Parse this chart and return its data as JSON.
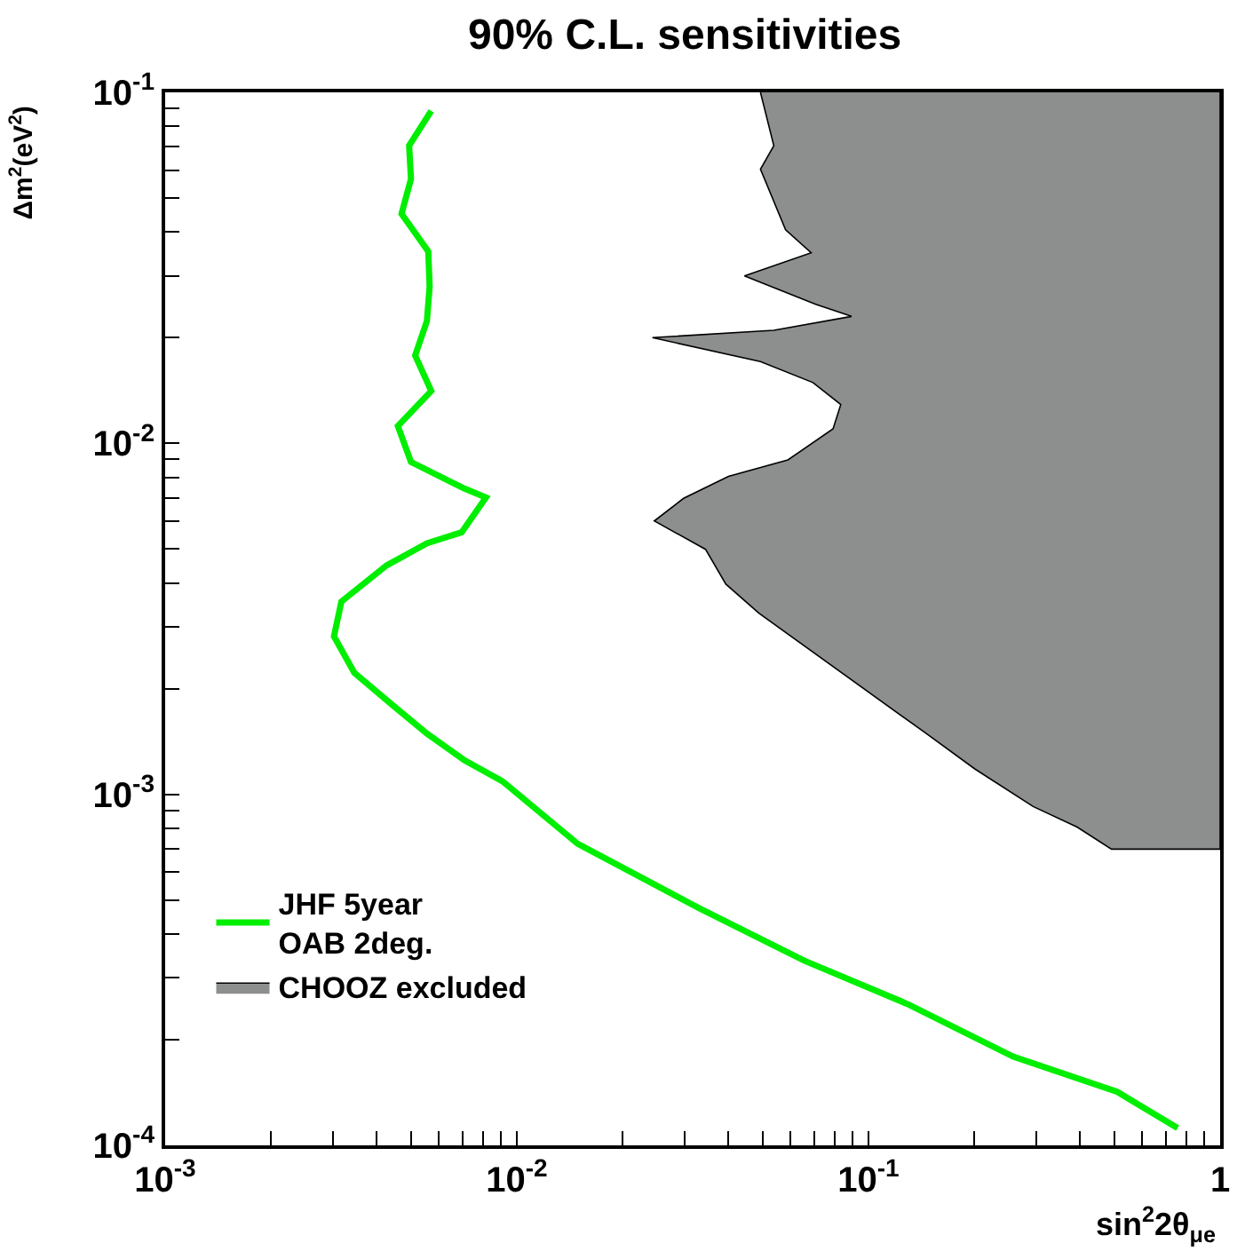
{
  "chart_data": {
    "type": "line",
    "title": "90% C.L. sensitivities",
    "xlabel": "sin$^{2}$2θ$_{μe}$",
    "ylabel": "Δm$^{2}$(eV$^{2}$)",
    "log": "xy",
    "grid": false,
    "legend": "bottom left",
    "marker": "none",
    "line_style": "solid",
    "xlim": [
      0.001,
      1
    ],
    "ylim": [
      0.0001,
      0.1
    ],
    "xticks": [
      {
        "value": 0.001,
        "label": "10$^{-3}$"
      },
      {
        "value": 0.002,
        "label": null
      },
      {
        "value": 0.003,
        "label": null
      },
      {
        "value": 0.004,
        "label": null
      },
      {
        "value": 0.005,
        "label": null
      },
      {
        "value": 0.006,
        "label": null
      },
      {
        "value": 0.007,
        "label": null
      },
      {
        "value": 0.008,
        "label": null
      },
      {
        "value": 0.009,
        "label": null
      },
      {
        "value": 0.01,
        "label": "10$^{-2}$"
      },
      {
        "value": 0.02,
        "label": null
      },
      {
        "value": 0.03,
        "label": null
      },
      {
        "value": 0.04,
        "label": null
      },
      {
        "value": 0.05,
        "label": null
      },
      {
        "value": 0.06,
        "label": null
      },
      {
        "value": 0.07,
        "label": null
      },
      {
        "value": 0.08,
        "label": null
      },
      {
        "value": 0.09,
        "label": null
      },
      {
        "value": 0.1,
        "label": "10$^{-1}$"
      },
      {
        "value": 0.2,
        "label": null
      },
      {
        "value": 0.3,
        "label": null
      },
      {
        "value": 0.4,
        "label": null
      },
      {
        "value": 0.5,
        "label": null
      },
      {
        "value": 0.6,
        "label": null
      },
      {
        "value": 0.7,
        "label": null
      },
      {
        "value": 0.8,
        "label": null
      },
      {
        "value": 0.9,
        "label": null
      },
      1
    ],
    "yticks": [
      {
        "value": 0.0001,
        "label": "10$^{-4}$"
      },
      {
        "value": 0.0002,
        "label": null
      },
      {
        "value": 0.0003,
        "label": null
      },
      {
        "value": 0.0004,
        "label": null
      },
      {
        "value": 0.0005,
        "label": null
      },
      {
        "value": 0.0006,
        "label": null
      },
      {
        "value": 0.0007,
        "label": null
      },
      {
        "value": 0.0008,
        "label": null
      },
      {
        "value": 0.0009,
        "label": null
      },
      {
        "value": 0.001,
        "label": "10$^{-3}$"
      },
      {
        "value": 0.002,
        "label": null
      },
      {
        "value": 0.003,
        "label": null
      },
      {
        "value": 0.004,
        "label": null
      },
      {
        "value": 0.005,
        "label": null
      },
      {
        "value": 0.006,
        "label": null
      },
      {
        "value": 0.007,
        "label": null
      },
      {
        "value": 0.008,
        "label": null
      },
      {
        "value": 0.009,
        "label": null
      },
      {
        "value": 0.01,
        "label": "10$^{-2}$"
      },
      {
        "value": 0.02,
        "label": null
      },
      {
        "value": 0.03,
        "label": null
      },
      {
        "value": 0.04,
        "label": null
      },
      {
        "value": 0.05,
        "label": null
      },
      {
        "value": 0.06,
        "label": null
      },
      {
        "value": 0.07,
        "label": null
      },
      {
        "value": 0.08,
        "label": null
      },
      {
        "value": 0.09,
        "label": null
      },
      {
        "value": 0.1,
        "label": "10$^{-1}$"
      }
    ],
    "series": [
      {
        "name": "JHF 5year\nOAB 2deg.",
        "color": "#00ee00",
        "x": [
          0.00571,
          0.00494,
          0.005,
          0.0047,
          0.0056,
          0.00565,
          0.00555,
          0.00514,
          0.00571,
          0.00459,
          0.005,
          0.0071,
          0.00817,
          0.00697,
          0.00555,
          0.00426,
          0.00317,
          0.00302,
          0.00345,
          0.00442,
          0.00555,
          0.0071,
          0.0091,
          0.0149,
          0.0331,
          0.0656,
          0.13,
          0.258,
          0.51,
          0.757
        ],
        "values": [
          0.0885,
          0.0705,
          0.0566,
          0.0451,
          0.0352,
          0.028,
          0.0223,
          0.0178,
          0.0141,
          0.0112,
          0.00885,
          0.00743,
          0.00701,
          0.00558,
          0.00519,
          0.00449,
          0.00354,
          0.00282,
          0.00222,
          0.0018,
          0.00149,
          0.00125,
          0.00109,
          0.000723,
          0.000473,
          0.000336,
          0.000252,
          0.000179,
          0.000142,
          0.000112
        ]
      },
      {
        "name": "CHOOZ excluded",
        "type": "area",
        "color": "#8c8f8e",
        "x": [
          0.0493,
          0.0538,
          0.0493,
          0.0581,
          0.0687,
          0.0444,
          0.0708,
          0.0895,
          0.0538,
          0.0243,
          0.0493,
          0.0695,
          0.0834,
          0.0793,
          0.059,
          0.04,
          0.0298,
          0.0246,
          0.0344,
          0.0393,
          0.0488,
          0.146,
          0.201,
          0.294,
          0.392,
          0.491,
          1,
          1
        ],
        "values": [
          0.1,
          0.0705,
          0.0604,
          0.0406,
          0.0349,
          0.03,
          0.0249,
          0.023,
          0.021,
          0.02,
          0.0171,
          0.0149,
          0.0129,
          0.011,
          0.00897,
          0.00805,
          0.00697,
          0.00601,
          0.00499,
          0.00397,
          0.00328,
          0.00149,
          0.00118,
          0.000923,
          0.000807,
          0.000698,
          0.000698,
          0.1
        ]
      }
    ]
  }
}
